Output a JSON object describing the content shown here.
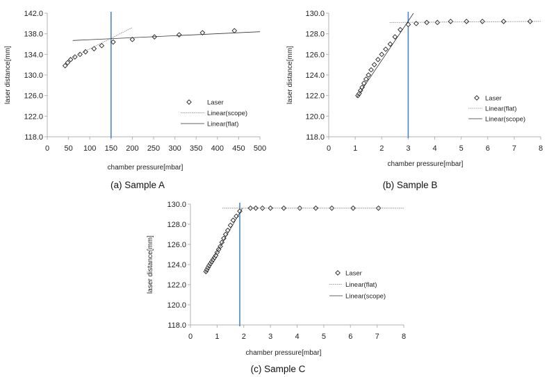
{
  "chart_data": [
    {
      "type": "scatter",
      "caption": "(a) Sample A",
      "xlabel": "chamber pressure[mbar]",
      "ylabel": "laser distance[mm]",
      "xlim": [
        0,
        500
      ],
      "ylim": [
        118,
        142
      ],
      "xticks": [
        0,
        50,
        100,
        150,
        200,
        250,
        300,
        350,
        400,
        450,
        500
      ],
      "xtick_labels": [
        "0",
        "50",
        "100",
        "150",
        "200",
        "250",
        "300",
        "350",
        "400",
        "450",
        "500"
      ],
      "yticks": [
        118,
        122,
        126,
        130,
        134,
        138,
        142
      ],
      "ytick_labels": [
        "118.0",
        "122.0",
        "126.0",
        "130.0",
        "134.0",
        "138.0",
        "142.0"
      ],
      "vline": 150,
      "legend_position": "bottom-right",
      "series": [
        {
          "name": "Laser",
          "kind": "points",
          "x": [
            42,
            48,
            55,
            65,
            77,
            90,
            110,
            128,
            155,
            200,
            252,
            310,
            365,
            440
          ],
          "y": [
            131.8,
            132.4,
            133.0,
            133.5,
            134.0,
            134.5,
            135.1,
            135.7,
            136.4,
            136.9,
            137.4,
            137.8,
            138.2,
            138.6
          ]
        },
        {
          "name": "Linear(scope)",
          "kind": "line",
          "style": "dotted",
          "x": [
            55,
            200
          ],
          "y": [
            133.2,
            139.2
          ]
        },
        {
          "name": "Linear(flat)",
          "kind": "line",
          "style": "solid",
          "x": [
            60,
            500
          ],
          "y": [
            136.7,
            138.4
          ]
        }
      ]
    },
    {
      "type": "scatter",
      "caption": "(b) Sample B",
      "xlabel": "chamber pressure[mbar]",
      "ylabel": "laser distance[mm]",
      "xlim": [
        0,
        8
      ],
      "ylim": [
        118,
        130
      ],
      "xticks": [
        0,
        1,
        2,
        3,
        4,
        5,
        6,
        7,
        8
      ],
      "xtick_labels": [
        "0",
        "1",
        "2",
        "3",
        "4",
        "5",
        "6",
        "7",
        "8"
      ],
      "yticks": [
        118,
        120,
        122,
        124,
        126,
        128,
        130
      ],
      "ytick_labels": [
        "118.0",
        "120.0",
        "122.0",
        "124.0",
        "126.0",
        "128.0",
        "130.0"
      ],
      "vline": 3,
      "legend_position": "right",
      "series": [
        {
          "name": "Laser",
          "kind": "points",
          "x": [
            1.1,
            1.15,
            1.2,
            1.26,
            1.33,
            1.41,
            1.5,
            1.6,
            1.72,
            1.86,
            2.0,
            2.15,
            2.32,
            2.5,
            2.7,
            3.0,
            3.3,
            3.7,
            4.1,
            4.6,
            5.2,
            5.8,
            6.6,
            7.6
          ],
          "y": [
            122.0,
            122.2,
            122.5,
            122.8,
            123.2,
            123.6,
            124.0,
            124.5,
            125.0,
            125.5,
            126.0,
            126.5,
            127.0,
            127.7,
            128.4,
            128.9,
            129.0,
            129.1,
            129.1,
            129.2,
            129.2,
            129.2,
            129.2,
            129.2
          ]
        },
        {
          "name": "Linear(flat)",
          "kind": "line",
          "style": "dotted",
          "x": [
            2.3,
            8
          ],
          "y": [
            129.1,
            129.2
          ]
        },
        {
          "name": "Linear(scope)",
          "kind": "line",
          "style": "solid",
          "x": [
            1.05,
            3.2
          ],
          "y": [
            121.8,
            130.0
          ]
        }
      ]
    },
    {
      "type": "scatter",
      "caption": "(c) Sample C",
      "xlabel": "chamber pressure[mbar]",
      "ylabel": "laser distance[mm]",
      "xlim": [
        0,
        8
      ],
      "ylim": [
        118,
        130
      ],
      "xticks": [
        0,
        1,
        2,
        3,
        4,
        5,
        6,
        7,
        8
      ],
      "xtick_labels": [
        "0",
        "1",
        "2",
        "3",
        "4",
        "5",
        "6",
        "7",
        "8"
      ],
      "yticks": [
        118,
        120,
        122,
        124,
        126,
        128,
        130
      ],
      "ytick_labels": [
        "118.0",
        "120.0",
        "122.0",
        "124.0",
        "126.0",
        "128.0",
        "130.0"
      ],
      "vline": 1.85,
      "legend_position": "right",
      "series": [
        {
          "name": "Laser",
          "kind": "points",
          "x": [
            0.58,
            0.62,
            0.66,
            0.7,
            0.75,
            0.8,
            0.85,
            0.9,
            0.95,
            1.0,
            1.06,
            1.12,
            1.18,
            1.25,
            1.32,
            1.4,
            1.5,
            1.6,
            1.72,
            1.85,
            2.25,
            2.45,
            2.7,
            3.0,
            3.5,
            4.1,
            4.7,
            5.3,
            6.1,
            7.05
          ],
          "y": [
            123.3,
            123.5,
            123.7,
            123.9,
            124.1,
            124.3,
            124.5,
            124.7,
            124.9,
            125.2,
            125.5,
            125.8,
            126.2,
            126.6,
            127.0,
            127.4,
            127.9,
            128.4,
            128.8,
            129.3,
            129.6,
            129.6,
            129.6,
            129.6,
            129.6,
            129.6,
            129.6,
            129.6,
            129.6,
            129.6
          ]
        },
        {
          "name": "Linear(flat)",
          "kind": "line",
          "style": "dotted",
          "x": [
            1.2,
            8
          ],
          "y": [
            129.6,
            129.6
          ]
        },
        {
          "name": "Linear(scope)",
          "kind": "line",
          "style": "solid",
          "x": [
            0.55,
            1.95
          ],
          "y": [
            123.2,
            129.6
          ]
        }
      ]
    }
  ],
  "colors": {
    "axis": "#b0b0b0",
    "marker": "#222222",
    "vline": "#4a86c8",
    "fit": "#333333"
  }
}
